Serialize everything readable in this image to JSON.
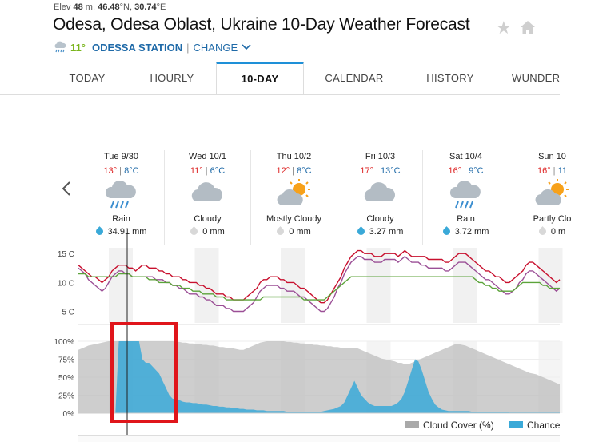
{
  "header": {
    "elev_prefix": "Elev",
    "elev_value": "48",
    "elev_unit": "m,",
    "lat_value": "46.48",
    "lat_unit": "°N,",
    "lon_value": "30.74",
    "lon_unit": "°E",
    "title": "Odesa, Odesa Oblast, Ukraine 10-Day Weather Forecast",
    "star_icon": "star-icon",
    "home_icon": "home-icon",
    "current_temp": "11°",
    "station_name": "ODESSA STATION",
    "separator": "|",
    "change_label": "CHANGE"
  },
  "tabs": [
    {
      "label": "TODAY",
      "active": false
    },
    {
      "label": "HOURLY",
      "active": false
    },
    {
      "label": "10-DAY",
      "active": true
    },
    {
      "label": "CALENDAR",
      "active": false
    },
    {
      "label": "HISTORY",
      "active": false
    },
    {
      "label": "WUNDER",
      "active": false
    }
  ],
  "colors": {
    "accent": "#1e90d8",
    "high": "#d22222",
    "low": "#1f6aa8",
    "temp_line": "#c8102e",
    "dew_line": "#5ca33a",
    "feels_line": "#9b4f96",
    "cloud_fill": "#bdbdbd",
    "precip_fill": "#3aa9d8",
    "humidity_line": "#8bc34a",
    "highlight_box": "#e0151b"
  },
  "days": [
    {
      "name": "Tue 9/30",
      "high": "13°",
      "sep": "|",
      "low": "8°C",
      "condition": "Rain",
      "icon": "rain-cloud-icon",
      "precip": "34.91 mm",
      "precip_active": true
    },
    {
      "name": "Wed 10/1",
      "high": "11°",
      "sep": "|",
      "low": "6°C",
      "condition": "Cloudy",
      "icon": "cloud-icon",
      "precip": "0 mm",
      "precip_active": false
    },
    {
      "name": "Thu 10/2",
      "high": "12°",
      "sep": "|",
      "low": "8°C",
      "condition": "Mostly Cloudy",
      "icon": "sun-cloud-icon",
      "precip": "0 mm",
      "precip_active": false
    },
    {
      "name": "Fri 10/3",
      "high": "17°",
      "sep": "|",
      "low": "13°C",
      "condition": "Cloudy",
      "icon": "cloud-icon",
      "precip": "3.27 mm",
      "precip_active": true
    },
    {
      "name": "Sat 10/4",
      "high": "16°",
      "sep": "|",
      "low": "9°C",
      "condition": "Rain",
      "icon": "rain-cloud-icon",
      "precip": "3.72 mm",
      "precip_active": true
    },
    {
      "name": "Sun 10",
      "high": "16°",
      "sep": "|",
      "low": "11",
      "condition": "Partly Clo",
      "icon": "sun-cloud-icon",
      "precip": "0 m",
      "precip_active": false
    }
  ],
  "chart_data": [
    {
      "type": "line",
      "y_ticks": [
        "15 C",
        "10 C",
        "5 C"
      ],
      "ylim": [
        3,
        16
      ],
      "x": [
        0,
        1,
        2,
        3,
        4,
        5,
        6,
        7,
        8,
        9,
        10,
        11,
        12,
        13,
        14,
        15,
        16,
        17,
        18,
        19,
        20,
        21,
        22,
        23,
        24,
        25,
        26,
        27,
        28,
        29,
        30,
        31,
        32,
        33,
        34,
        35,
        36,
        37,
        38,
        39,
        40,
        41,
        42,
        43,
        44,
        45,
        46,
        47,
        48,
        49,
        50,
        51,
        52,
        53,
        54,
        55,
        56,
        57,
        58,
        59,
        60,
        61,
        62,
        63,
        64,
        65,
        66,
        67,
        68,
        69,
        70,
        71,
        72,
        73,
        74,
        75,
        76,
        77,
        78,
        79,
        80,
        81,
        82,
        83,
        84,
        85,
        86,
        87,
        88,
        89,
        90,
        91,
        92,
        93,
        94,
        95,
        96,
        97,
        98,
        99,
        100,
        101,
        102,
        103,
        104,
        105,
        106,
        107,
        108,
        109,
        110,
        111,
        112,
        113,
        114,
        115,
        116,
        117,
        118,
        119,
        120,
        121,
        122,
        123,
        124,
        125,
        126,
        127,
        128,
        129,
        130,
        131,
        132,
        133,
        134,
        135,
        136,
        137,
        138,
        139,
        140,
        141,
        142,
        143
      ],
      "series": [
        {
          "values": [
            13,
            12.5,
            12,
            11.5,
            11,
            11,
            10.5,
            10,
            10.5,
            11,
            12,
            12.5,
            13,
            13,
            13,
            12.5,
            12.5,
            12,
            12.5,
            13,
            13,
            12.5,
            12.5,
            12.5,
            12,
            12,
            11.5,
            11.5,
            11,
            11,
            11,
            10.5,
            10.5,
            10,
            10,
            10,
            9.5,
            9.5,
            9,
            9,
            8.5,
            8,
            8,
            8,
            7.5,
            7.5,
            7,
            7,
            7,
            7,
            7.5,
            8,
            8.5,
            9,
            10,
            10.5,
            10.5,
            11,
            11,
            11,
            10.5,
            10.5,
            10,
            10,
            10,
            9.5,
            9,
            9,
            8.5,
            8,
            7.5,
            7,
            6.5,
            6.5,
            7,
            8,
            9,
            10,
            11,
            12.5,
            13.5,
            14.5,
            15,
            15.5,
            15.5,
            15,
            15,
            15,
            14.5,
            14.5,
            14.5,
            15,
            15,
            15,
            15,
            14.5,
            15,
            15.5,
            15,
            14.5,
            14.5,
            14.5,
            14.5,
            14.5,
            14,
            14,
            14,
            14,
            14,
            13.5,
            13.5,
            14,
            14.5,
            15,
            15,
            15,
            14.5,
            14,
            13.5,
            13,
            12.5,
            12,
            12,
            11.5,
            11,
            11,
            10.5,
            10,
            10,
            10.5,
            11,
            11.5,
            12,
            13,
            13.5,
            13.5,
            13,
            12.5,
            12,
            11.5,
            11,
            10.5,
            10,
            10.5
          ]
        },
        {
          "values": [
            12.5,
            12,
            11.5,
            10.5,
            10,
            9.5,
            9,
            8.5,
            9,
            10,
            11,
            11.5,
            12,
            12,
            11.5,
            11.5,
            11,
            11,
            11,
            11,
            11,
            11,
            11,
            10.5,
            10.5,
            10.5,
            10,
            10,
            9.5,
            9.5,
            9,
            9,
            8.5,
            8,
            8,
            8,
            7.5,
            7.5,
            7,
            7,
            6.5,
            6,
            6,
            6,
            5.5,
            5.5,
            5,
            5,
            5,
            5,
            5.5,
            6,
            6.5,
            7.5,
            8.5,
            9,
            9.5,
            9.5,
            9.5,
            9.5,
            9,
            9,
            8.5,
            8.5,
            8.5,
            8,
            7.5,
            7.5,
            7,
            6.5,
            6,
            5.5,
            5,
            5,
            5.5,
            6.5,
            7.5,
            9,
            10,
            11.5,
            12.5,
            13.5,
            14,
            14.5,
            14.5,
            14,
            14,
            14,
            13.5,
            13.5,
            13.5,
            14,
            14,
            14,
            14,
            13.5,
            14,
            14.5,
            14,
            13.5,
            13.5,
            13.5,
            13,
            13,
            12.5,
            12.5,
            12.5,
            12.5,
            12.5,
            12,
            12,
            12.5,
            13,
            13.5,
            13.5,
            13.5,
            13,
            12.5,
            12,
            11.5,
            11,
            10.5,
            10.5,
            10,
            9.5,
            9,
            8.5,
            8,
            8,
            8.5,
            9,
            10,
            10.5,
            11.5,
            12,
            12,
            11.5,
            11,
            10.5,
            10,
            9.5,
            9,
            8.5,
            9
          ]
        },
        {
          "values": [
            11.5,
            11.5,
            11.5,
            11,
            11,
            11,
            11,
            11,
            11,
            11,
            11,
            11,
            11.5,
            11.5,
            11.5,
            11.5,
            11,
            11,
            11,
            11,
            11,
            10.5,
            10.5,
            10.5,
            10,
            10,
            10,
            10,
            9.5,
            9.5,
            9.5,
            9,
            9,
            9,
            8.5,
            8.5,
            8.5,
            8,
            8,
            8,
            8,
            7.5,
            7.5,
            7.5,
            7,
            7,
            7,
            7,
            7,
            7,
            7,
            7,
            7,
            7,
            7,
            7.5,
            7.5,
            7.5,
            7.5,
            7.5,
            7.5,
            7.5,
            7.5,
            7.5,
            7.5,
            7.5,
            7.5,
            7,
            7,
            7,
            7,
            7,
            7,
            7,
            7.5,
            8,
            8.5,
            9,
            9.5,
            10,
            10.5,
            11,
            11,
            11,
            11,
            11,
            11,
            11,
            11,
            11,
            11,
            11,
            11,
            11,
            11,
            11,
            11,
            11,
            11,
            11,
            11,
            11,
            11,
            11,
            11,
            11,
            11,
            11,
            11,
            11,
            11,
            11,
            11,
            11,
            11,
            11,
            11,
            11,
            10.5,
            10,
            10,
            9.5,
            9.5,
            9,
            9,
            8.5,
            8.5,
            8.5,
            8.5,
            8.5,
            9,
            9.5,
            10,
            10,
            10,
            10,
            10,
            10,
            9.5,
            9.5,
            9,
            9,
            9,
            9
          ]
        }
      ]
    },
    {
      "type": "area",
      "y_ticks": [
        "100%",
        "75%",
        "50%",
        "25%",
        "0%"
      ],
      "ylim": [
        0,
        100
      ],
      "x": [
        0,
        1,
        2,
        3,
        4,
        5,
        6,
        7,
        8,
        9,
        10,
        11,
        12,
        13,
        14,
        15,
        16,
        17,
        18,
        19,
        20,
        21,
        22,
        23,
        24,
        25,
        26,
        27,
        28,
        29,
        30,
        31,
        32,
        33,
        34,
        35,
        36,
        37,
        38,
        39,
        40,
        41,
        42,
        43,
        44,
        45,
        46,
        47,
        48,
        49,
        50,
        51,
        52,
        53,
        54,
        55,
        56,
        57,
        58,
        59,
        60,
        61,
        62,
        63,
        64,
        65,
        66,
        67,
        68,
        69,
        70,
        71,
        72,
        73,
        74,
        75,
        76,
        77,
        78,
        79,
        80,
        81,
        82,
        83,
        84,
        85,
        86,
        87,
        88,
        89,
        90,
        91,
        92,
        93,
        94,
        95,
        96,
        97,
        98,
        99,
        100,
        101,
        102,
        103,
        104,
        105,
        106,
        107,
        108,
        109,
        110,
        111,
        112,
        113,
        114,
        115,
        116,
        117,
        118,
        119,
        120,
        121,
        122,
        123,
        124,
        125,
        126,
        127,
        128,
        129,
        130,
        131,
        132,
        133,
        134,
        135,
        136,
        137,
        138,
        139,
        140,
        141,
        142,
        143
      ],
      "legend": [
        "Cloud Cover (%)",
        "Chance"
      ],
      "series": [
        {
          "name": "Cloud Cover (%)",
          "values": [
            88,
            90,
            92,
            94,
            95,
            96,
            97,
            98,
            99,
            100,
            100,
            100,
            100,
            100,
            100,
            100,
            100,
            100,
            100,
            100,
            100,
            100,
            100,
            100,
            100,
            100,
            100,
            100,
            100,
            99,
            99,
            98,
            98,
            97,
            97,
            96,
            96,
            95,
            95,
            94,
            94,
            93,
            92,
            92,
            91,
            90,
            90,
            89,
            88,
            88,
            90,
            92,
            94,
            96,
            98,
            99,
            100,
            100,
            100,
            100,
            100,
            100,
            99,
            99,
            98,
            98,
            97,
            97,
            96,
            96,
            95,
            95,
            94,
            94,
            93,
            93,
            92,
            92,
            91,
            90,
            90,
            90,
            90,
            90,
            88,
            86,
            84,
            82,
            80,
            78,
            76,
            75,
            74,
            73,
            72,
            70,
            70,
            68,
            68,
            70,
            72,
            74,
            76,
            78,
            80,
            82,
            84,
            86,
            88,
            90,
            92,
            94,
            96,
            96,
            95,
            94,
            92,
            90,
            88,
            86,
            84,
            82,
            80,
            78,
            76,
            74,
            72,
            70,
            68,
            66,
            64,
            62,
            60,
            58,
            56,
            55,
            54,
            52,
            50,
            48,
            46,
            44,
            42,
            40
          ]
        },
        {
          "name": "Chance",
          "values": [
            0,
            0,
            0,
            0,
            0,
            0,
            0,
            0,
            0,
            0,
            0,
            0,
            100,
            100,
            100,
            100,
            100,
            100,
            100,
            75,
            70,
            70,
            65,
            60,
            55,
            45,
            35,
            25,
            20,
            20,
            18,
            16,
            15,
            15,
            14,
            14,
            13,
            12,
            12,
            11,
            10,
            10,
            9,
            9,
            8,
            8,
            7,
            7,
            6,
            6,
            5,
            5,
            5,
            4,
            4,
            4,
            3,
            3,
            3,
            3,
            3,
            3,
            2,
            2,
            2,
            2,
            2,
            2,
            2,
            2,
            2,
            2,
            2,
            3,
            4,
            5,
            6,
            8,
            10,
            15,
            25,
            35,
            45,
            35,
            25,
            20,
            15,
            12,
            10,
            10,
            10,
            10,
            10,
            10,
            12,
            15,
            20,
            30,
            45,
            60,
            75,
            72,
            60,
            45,
            30,
            20,
            12,
            8,
            5,
            4,
            3,
            3,
            3,
            3,
            3,
            3,
            3,
            2,
            2,
            2,
            2,
            2,
            2,
            2,
            2,
            2,
            2,
            2,
            1,
            1,
            1,
            1,
            1,
            1,
            1,
            1,
            1,
            1,
            1,
            1,
            1,
            1,
            1,
            1
          ]
        }
      ]
    }
  ]
}
